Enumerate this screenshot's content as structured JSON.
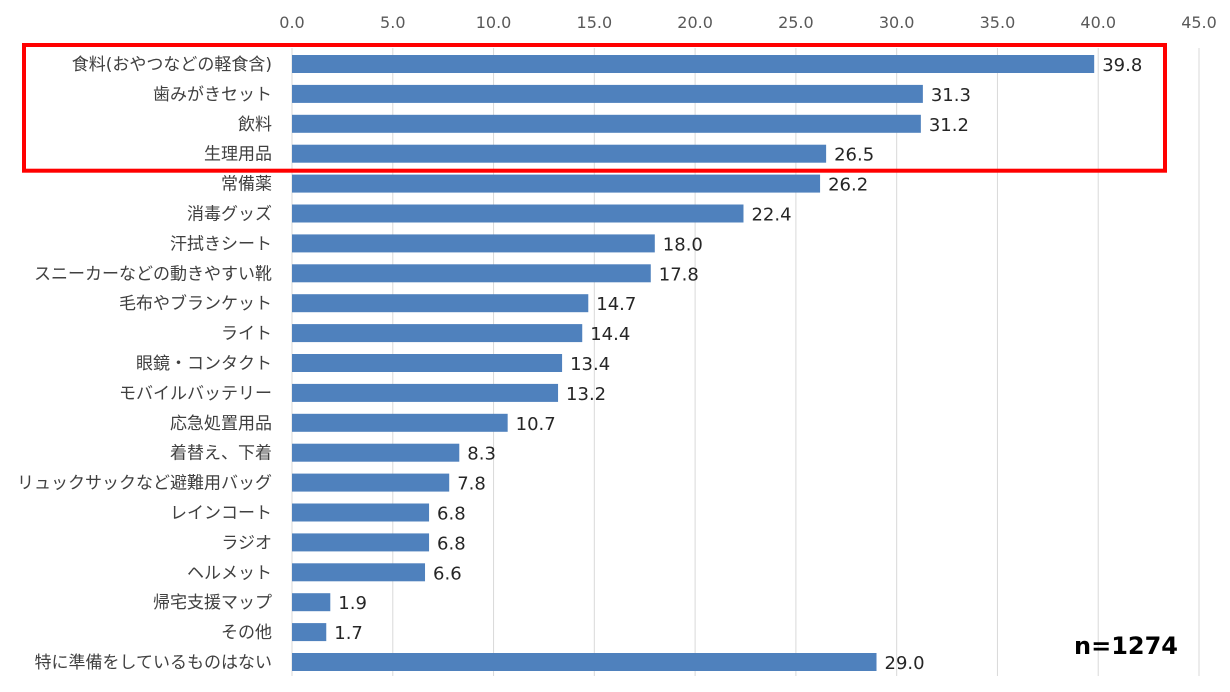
{
  "chart_data": {
    "type": "bar",
    "orientation": "horizontal",
    "categories": [
      "食料(おやつなどの軽食含)",
      "歯みがきセット",
      "飲料",
      "生理用品",
      "常備薬",
      "消毒グッズ",
      "汗拭きシート",
      "スニーカーなどの動きやすい靴",
      "毛布やブランケット",
      "ライト",
      "眼鏡・コンタクト",
      "モバイルバッテリー",
      "応急処置用品",
      "着替え、下着",
      "リュックサックなど避難用バッグ",
      "レインコート",
      "ラジオ",
      "ヘルメット",
      "帰宅支援マップ",
      "その他",
      "特に準備をしているものはない"
    ],
    "values": [
      39.8,
      31.3,
      31.2,
      26.5,
      26.2,
      22.4,
      18.0,
      17.8,
      14.7,
      14.4,
      13.4,
      13.2,
      10.7,
      8.3,
      7.8,
      6.8,
      6.8,
      6.6,
      1.9,
      1.7,
      29.0
    ],
    "value_labels": [
      "39.8",
      "31.3",
      "31.2",
      "26.5",
      "26.2",
      "22.4",
      "18.0",
      "17.8",
      "14.7",
      "14.4",
      "13.4",
      "13.2",
      "10.7",
      "8.3",
      "7.8",
      "6.8",
      "6.8",
      "6.6",
      "1.9",
      "1.7",
      "29.0"
    ],
    "xlim": [
      0,
      45
    ],
    "x_ticks": [
      "0.0",
      "5.0",
      "10.0",
      "15.0",
      "20.0",
      "25.0",
      "30.0",
      "35.0",
      "40.0",
      "45.0"
    ],
    "axis_position": "top",
    "grid": true,
    "highlight": {
      "from_index": 0,
      "to_index": 3,
      "color": "#ff0000"
    },
    "bar_color": "#4f81bd",
    "gridline_color": "#d9d9d9",
    "title": "",
    "xlabel": "",
    "ylabel": ""
  },
  "annotation": {
    "sample_size": "n=1274"
  }
}
